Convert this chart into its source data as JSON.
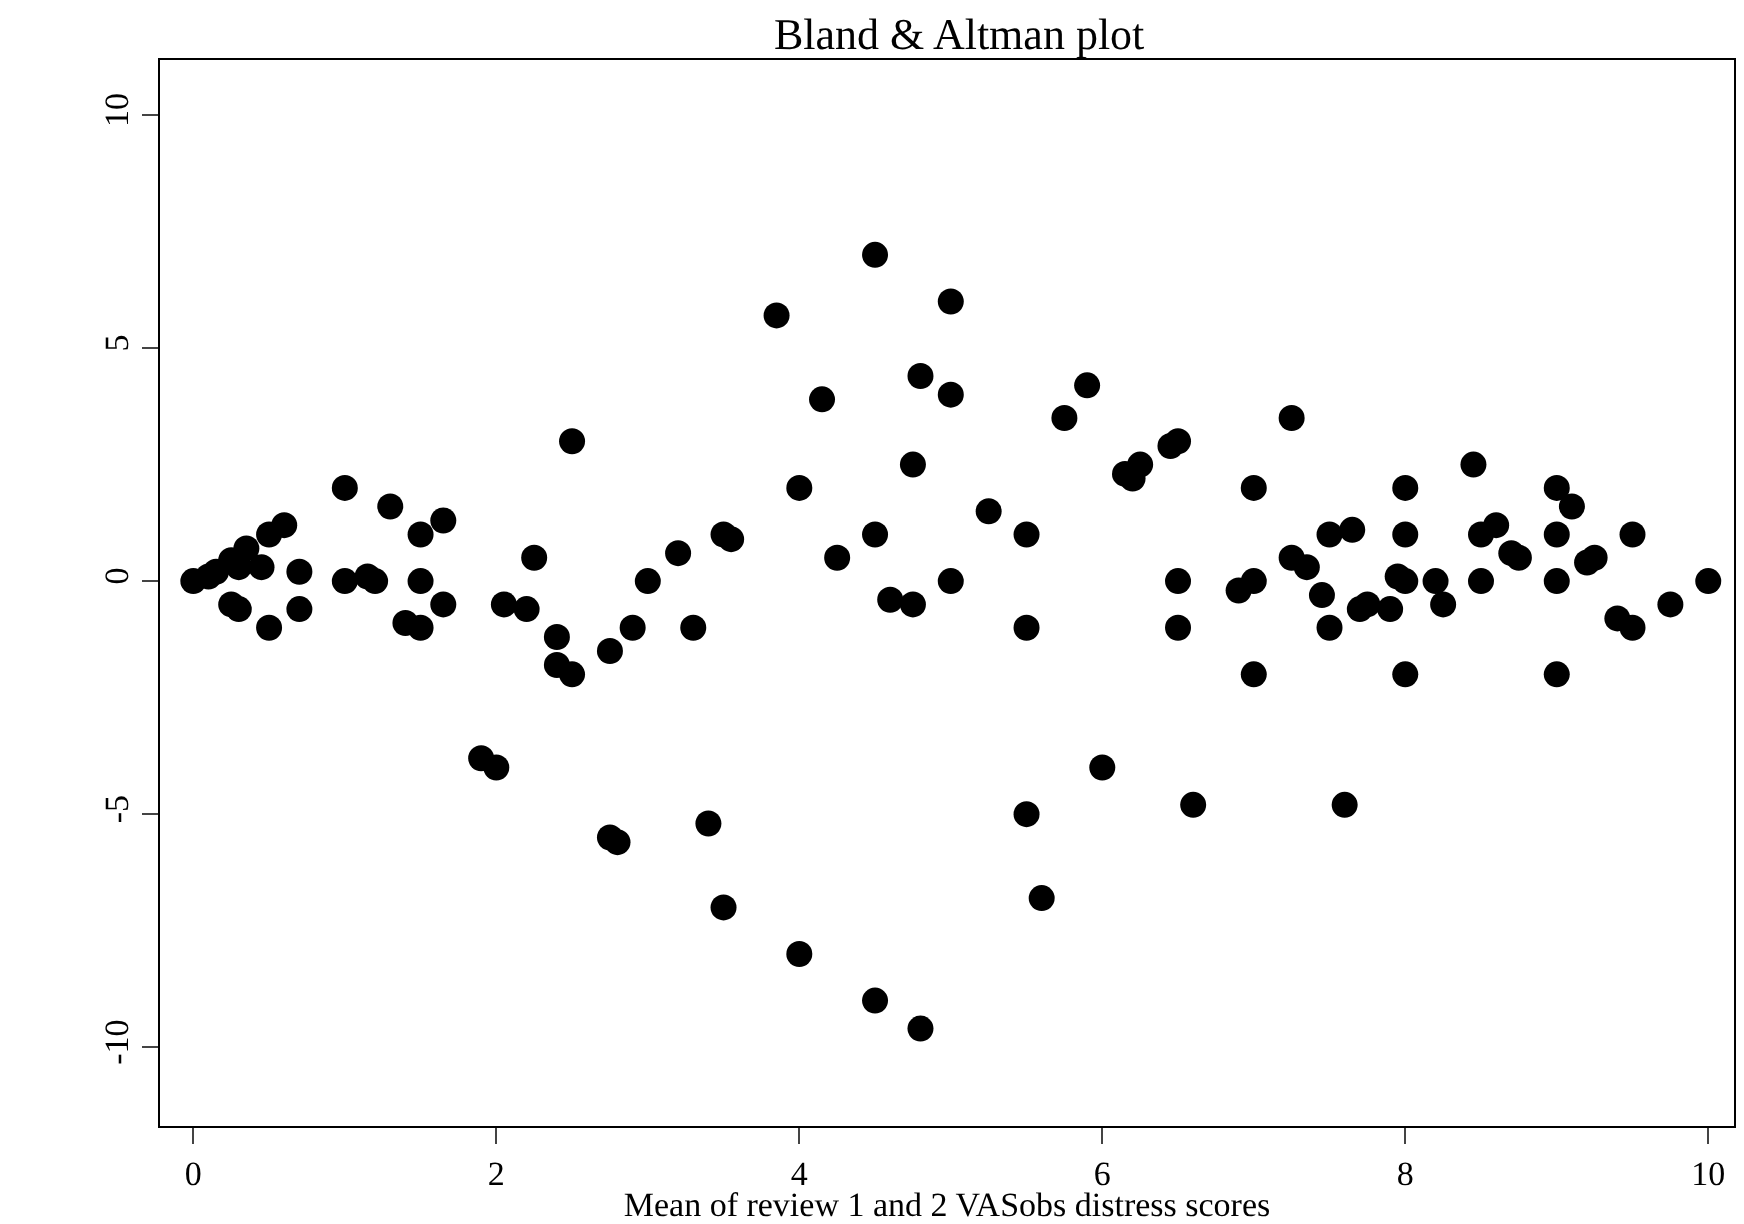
{
  "chart_data": {
    "type": "scatter",
    "title": "Bland & Altman plot",
    "xlabel": "Mean of review 1 and 2 VASobs distress scores",
    "x": [
      0,
      0.1,
      0.15,
      0.25,
      0.35,
      0.3,
      0.25,
      0.3,
      0.45,
      0.5,
      0.5,
      0.6,
      0.7,
      0.7,
      1.0,
      1.0,
      1.15,
      1.2,
      1.3,
      1.4,
      1.5,
      1.5,
      1.5,
      1.65,
      1.65,
      1.9,
      2.0,
      2.05,
      2.2,
      2.25,
      2.4,
      2.4,
      2.5,
      2.5,
      2.75,
      2.75,
      2.8,
      2.9,
      3.0,
      3.2,
      3.3,
      3.4,
      3.5,
      3.55,
      3.5,
      3.85,
      4.0,
      4.0,
      4.15,
      4.25,
      4.5,
      4.5,
      4.5,
      4.6,
      4.75,
      4.75,
      4.8,
      4.8,
      5.0,
      5.0,
      5.0,
      5.25,
      5.5,
      5.5,
      5.5,
      5.6,
      5.75,
      5.9,
      6.0,
      6.15,
      6.2,
      6.25,
      6.45,
      6.5,
      6.5,
      6.5,
      6.6,
      6.9,
      7.0,
      7.0,
      7.0,
      7.25,
      7.25,
      7.35,
      7.45,
      7.5,
      7.5,
      7.6,
      7.65,
      7.7,
      7.75,
      7.9,
      7.95,
      8.0,
      8.0,
      8.0,
      8.0,
      8.2,
      8.25,
      8.45,
      8.5,
      8.5,
      8.6,
      8.7,
      8.75,
      9.0,
      9.0,
      9.0,
      9.0,
      9.1,
      9.2,
      9.25,
      9.4,
      9.5,
      9.5,
      9.75,
      10
    ],
    "values": [
      0,
      0.1,
      0.2,
      0.45,
      0.7,
      0.3,
      -0.5,
      -0.6,
      0.3,
      1.0,
      -1.0,
      1.2,
      0.2,
      -0.6,
      2.0,
      0,
      0.1,
      0,
      1.6,
      -0.9,
      -1.0,
      1.0,
      0,
      1.3,
      -0.5,
      -3.8,
      -4.0,
      -0.5,
      -0.6,
      0.5,
      -1.2,
      -1.8,
      -2.0,
      3.0,
      -1.5,
      -5.5,
      -5.6,
      -1.0,
      0,
      0.6,
      -1.0,
      -5.2,
      1.0,
      0.9,
      -7.0,
      5.7,
      2.0,
      -8.0,
      3.9,
      0.5,
      7.0,
      1.0,
      -9.0,
      -0.4,
      2.5,
      -0.5,
      4.4,
      -9.6,
      6.0,
      4.0,
      0,
      1.5,
      1.0,
      -1.0,
      -5.0,
      -6.8,
      3.5,
      4.2,
      -4.0,
      2.3,
      2.2,
      2.5,
      2.9,
      3.0,
      0,
      -1.0,
      -4.8,
      -0.2,
      2.0,
      0,
      -2.0,
      3.5,
      0.5,
      0.3,
      -0.3,
      1.0,
      -1.0,
      -4.8,
      1.1,
      -0.6,
      -0.5,
      -0.6,
      0.1,
      2.0,
      1.0,
      0,
      -2.0,
      0,
      -0.5,
      2.5,
      1.0,
      0,
      1.2,
      0.6,
      0.5,
      2.0,
      1.0,
      0,
      -2.0,
      1.6,
      0.4,
      0.5,
      -0.8,
      1.0,
      -1.0,
      -0.5,
      0
    ],
    "color": "#000000",
    "marker": "circle",
    "xlim": [
      -0.22,
      10.17
    ],
    "ylim": [
      -11.69,
      11.18
    ],
    "xticks": [
      0,
      2,
      4,
      6,
      8,
      10
    ],
    "yticks": [
      -10,
      -5,
      0,
      5,
      10
    ],
    "grid": false,
    "legend": false
  }
}
